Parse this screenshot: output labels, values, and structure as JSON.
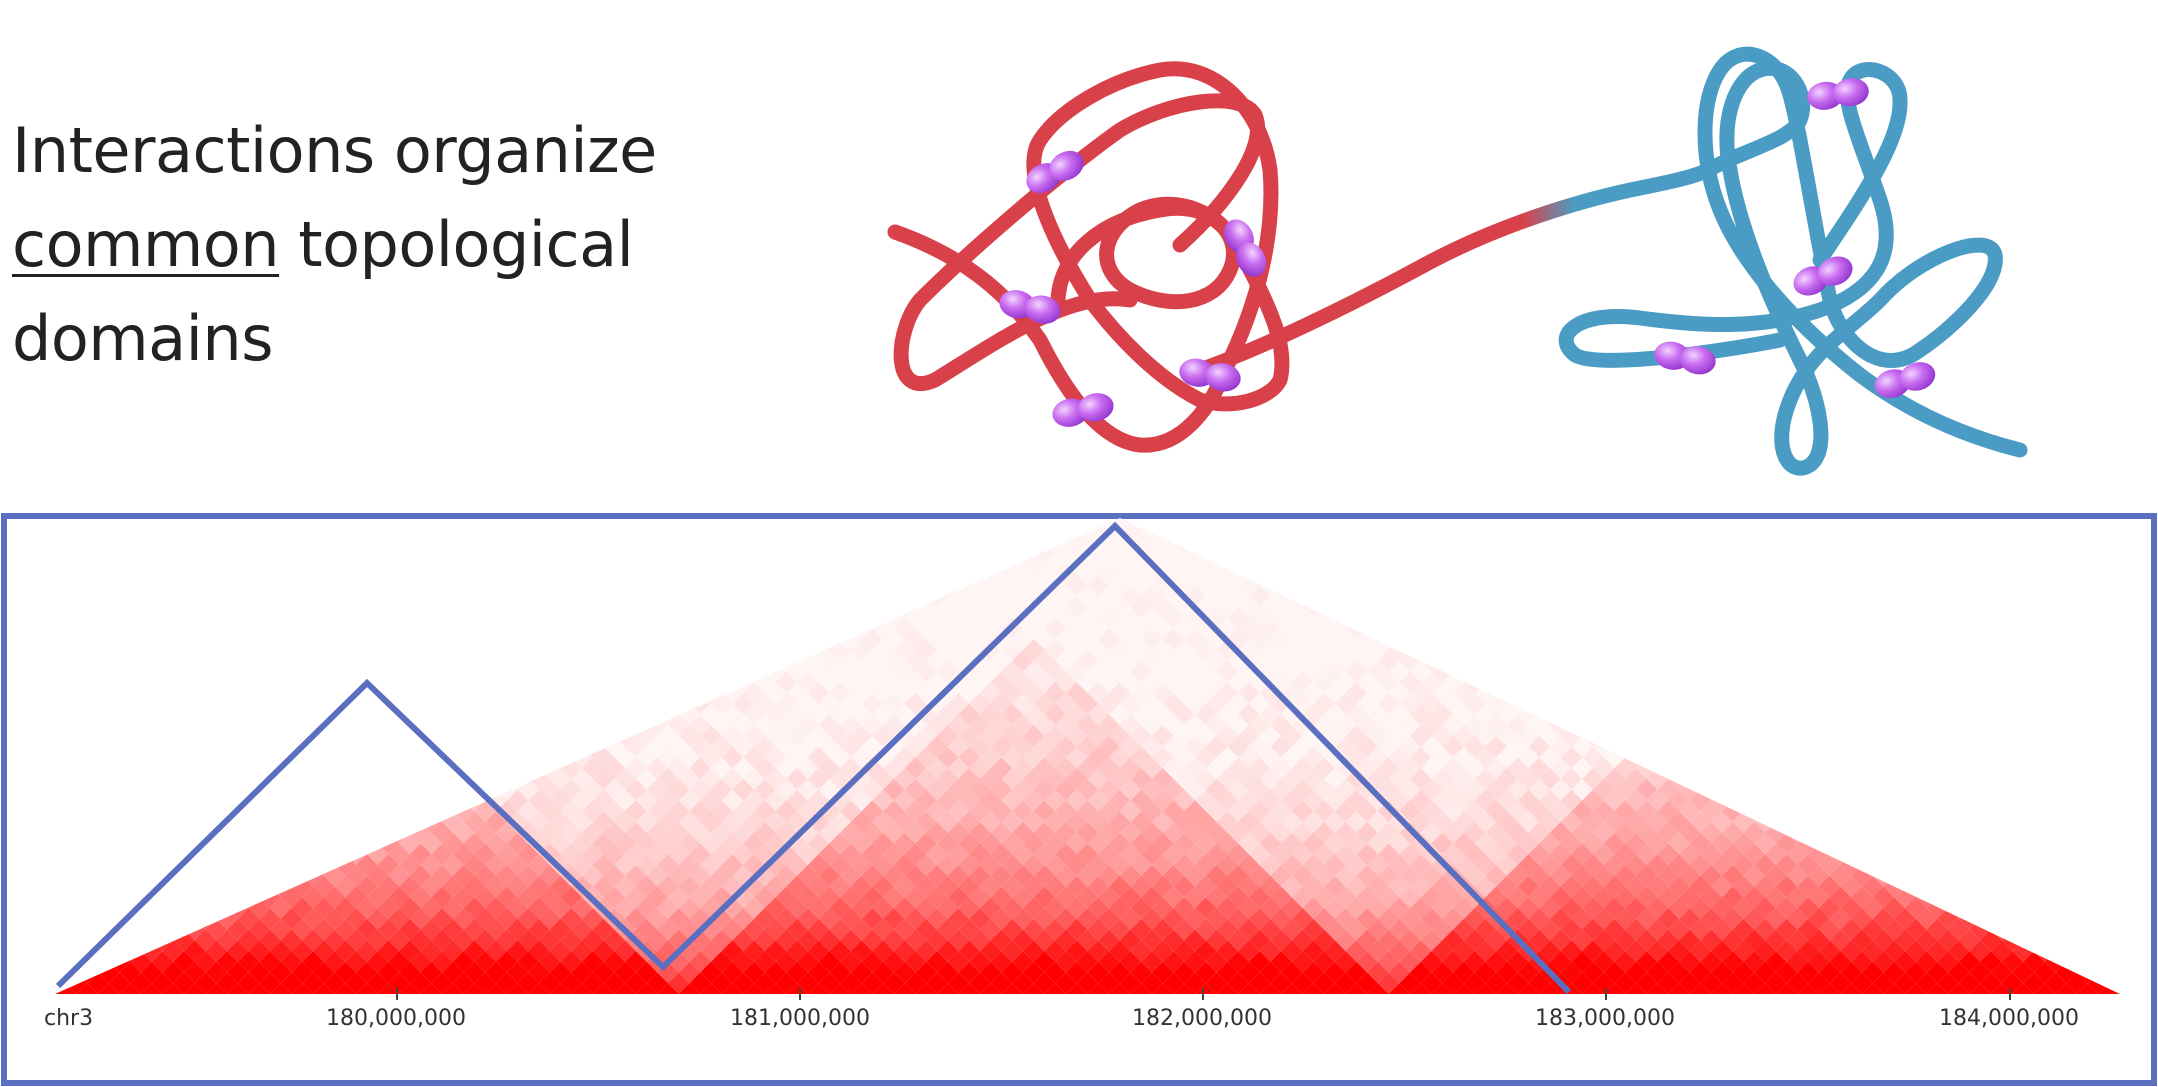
{
  "headline": {
    "line1": "Interactions organize",
    "line2_underlined": "common",
    "line2_rest": " topological",
    "line3": "domains"
  },
  "colors": {
    "domain_a_fiber": "#d9414a",
    "domain_b_fiber": "#4a9cc4",
    "protein_bead": "#b050e0",
    "heatmap_max": "#e00000",
    "heatmap_min": "#ffffff",
    "frame": "#5b6fc1",
    "tad_outline": "#5b6fc1"
  },
  "heatmap": {
    "chromosome_label": "chr3",
    "axis_labels": [
      "180,000,000",
      "181,000,000",
      "182,000,000",
      "183,000,000",
      "184,000,000"
    ]
  }
}
